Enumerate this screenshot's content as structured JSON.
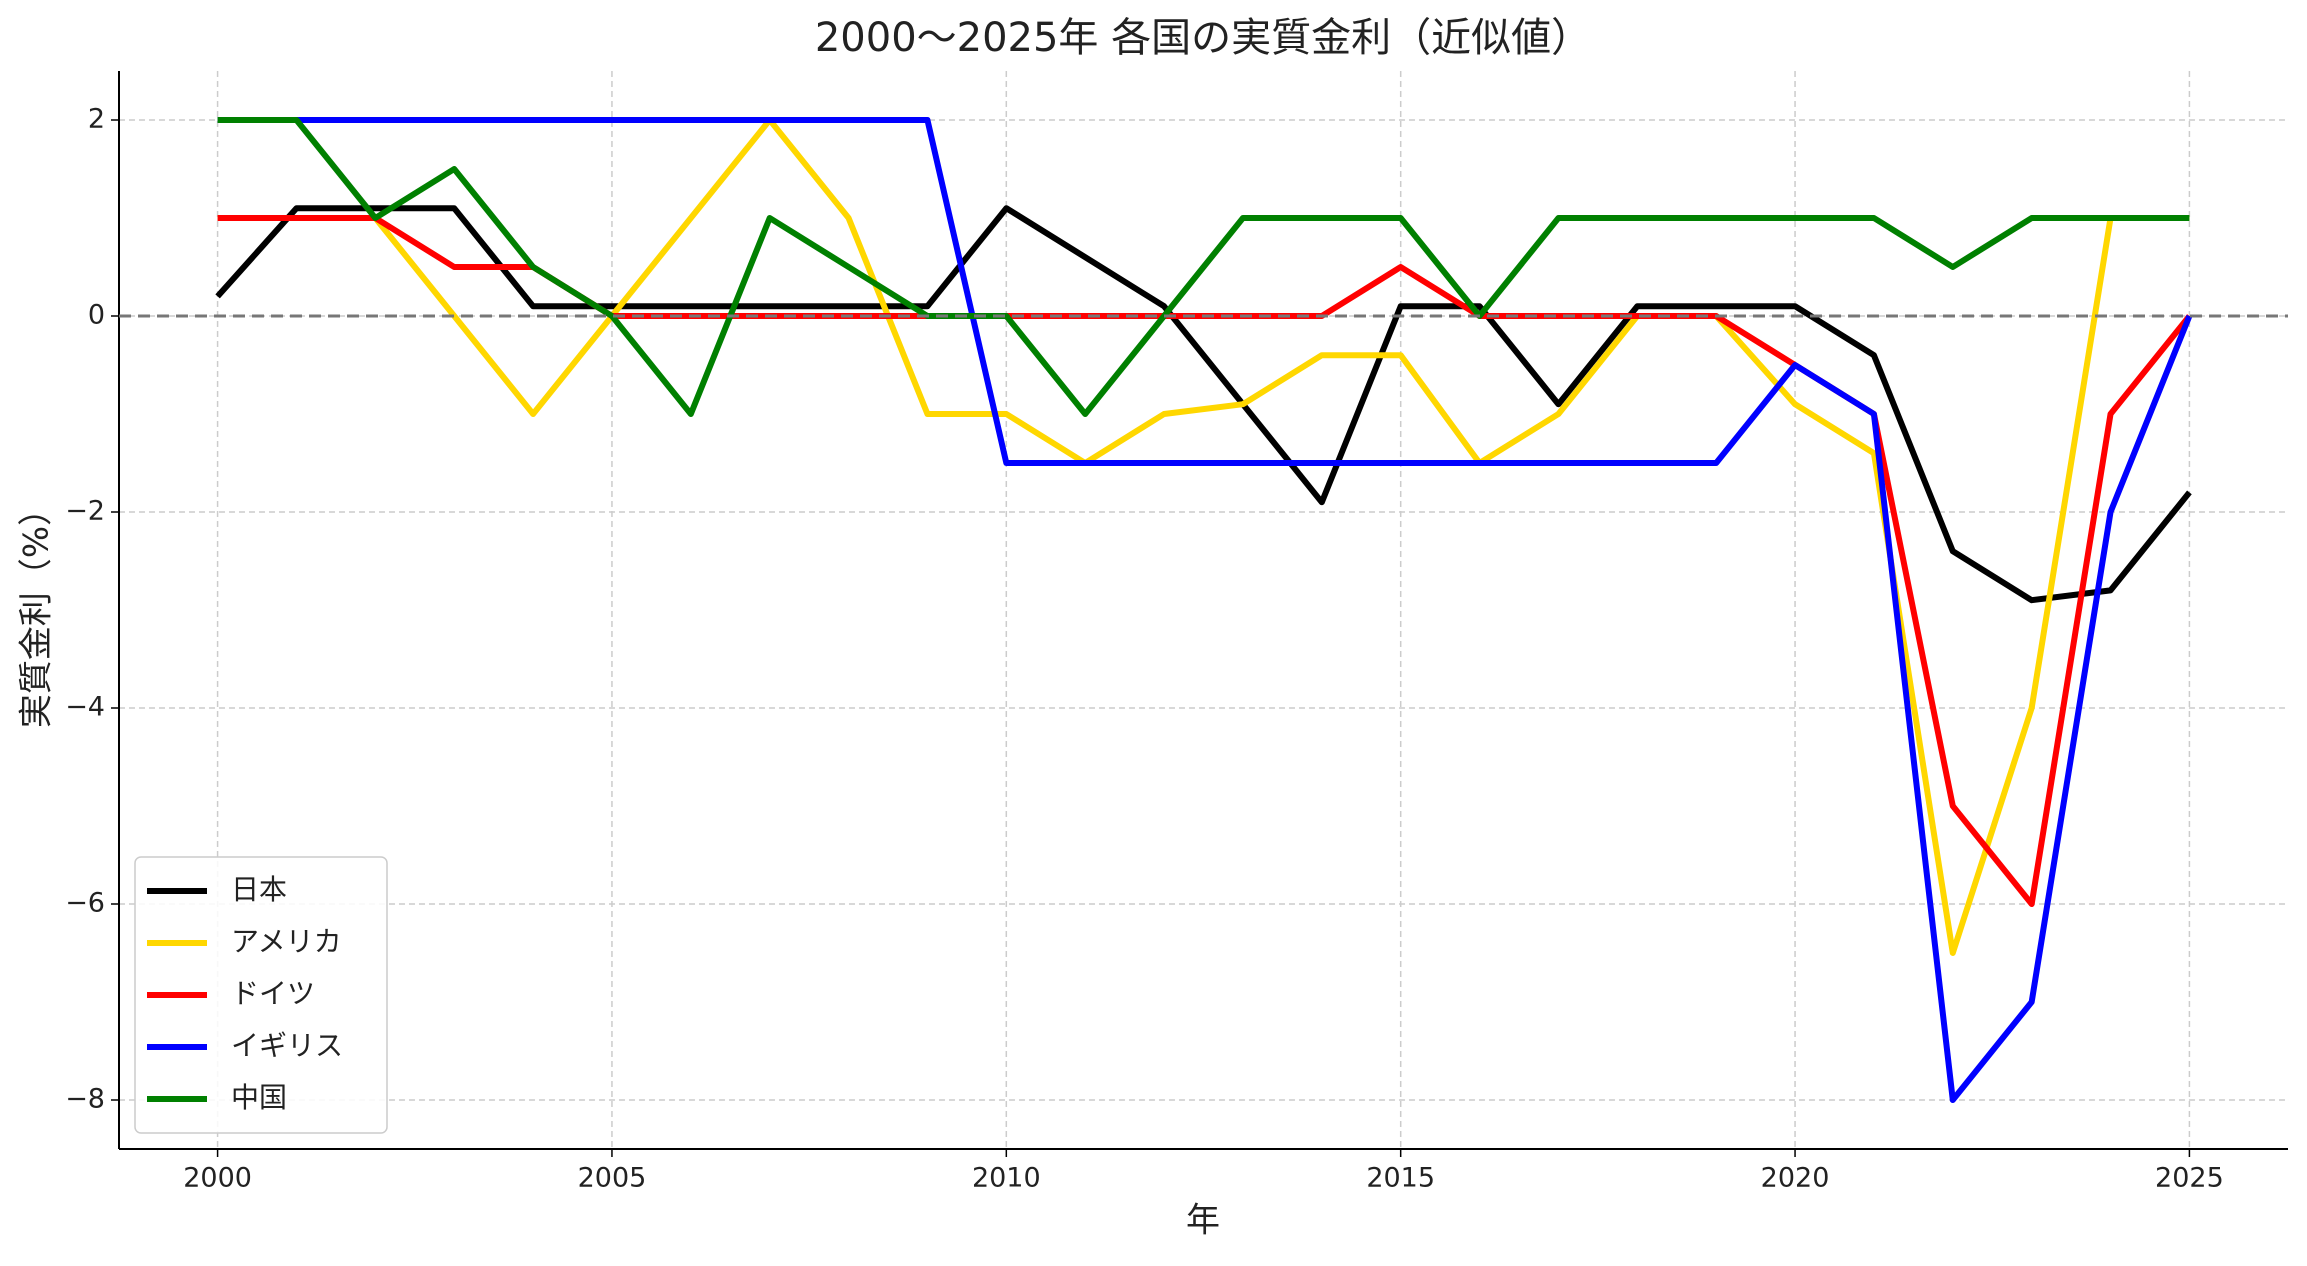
{
  "chart_data": {
    "type": "line",
    "title": "2000〜2025年 各国の実質金利（近似値）",
    "x_label": "年",
    "y_label": "実質金利（%）",
    "x": [
      2000,
      2001,
      2002,
      2003,
      2004,
      2005,
      2006,
      2007,
      2008,
      2009,
      2010,
      2011,
      2012,
      2013,
      2014,
      2015,
      2016,
      2017,
      2018,
      2019,
      2020,
      2021,
      2022,
      2023,
      2024,
      2025
    ],
    "series": [
      {
        "name": "日本",
        "color": "#000000",
        "values": [
          0.2,
          1.1,
          1.1,
          1.1,
          0.1,
          0.1,
          0.1,
          0.1,
          0.1,
          0.1,
          1.1,
          0.6,
          0.1,
          -0.9,
          -1.9,
          0.1,
          0.1,
          -0.9,
          0.1,
          0.1,
          0.1,
          -0.4,
          -2.4,
          -2.9,
          -2.8,
          -1.8
        ]
      },
      {
        "name": "アメリカ",
        "color": "#ffd700",
        "values": [
          1,
          1,
          1,
          0,
          -1,
          0,
          1,
          2,
          1,
          -1,
          -1,
          -1.5,
          -1,
          -0.9,
          -0.4,
          -0.4,
          -1.5,
          -1,
          0,
          0,
          -0.9,
          -1.4,
          -6.5,
          -4,
          1,
          1
        ]
      },
      {
        "name": "ドイツ",
        "color": "#ff0000",
        "values": [
          1,
          1,
          1,
          0.5,
          0.5,
          0,
          0,
          0,
          0,
          0,
          0,
          0,
          0,
          0,
          0,
          0.5,
          0,
          0,
          0,
          0,
          -0.5,
          -1,
          -5,
          -6,
          -1,
          0
        ]
      },
      {
        "name": "イギリス",
        "color": "#0000ff",
        "values": [
          2,
          2,
          2,
          2,
          2,
          2,
          2,
          2,
          2,
          2,
          -1.5,
          -1.5,
          -1.5,
          -1.5,
          -1.5,
          -1.5,
          -1.5,
          -1.5,
          -1.5,
          -1.5,
          -0.5,
          -1,
          -8,
          -7,
          -2,
          0
        ]
      },
      {
        "name": "中国",
        "color": "#008000",
        "values": [
          2,
          2,
          1,
          1.5,
          0.5,
          0,
          -1,
          1,
          0.5,
          0,
          0,
          -1,
          0,
          1,
          1,
          1,
          0,
          1,
          1,
          1,
          1,
          1,
          0.5,
          1,
          1,
          1
        ]
      }
    ],
    "xlim": [
      1998.75,
      2026.25
    ],
    "xticks": [
      2000,
      2005,
      2010,
      2015,
      2020,
      2025
    ],
    "ylim": [
      -8.5,
      2.5
    ],
    "yticks": [
      {
        "value": -8,
        "label": "−8"
      },
      {
        "value": -6,
        "label": "−6"
      },
      {
        "value": -4,
        "label": "−4"
      },
      {
        "value": -2,
        "label": "−2"
      },
      0,
      2
    ],
    "hline": 0,
    "grid": true,
    "legend": "lower left"
  }
}
